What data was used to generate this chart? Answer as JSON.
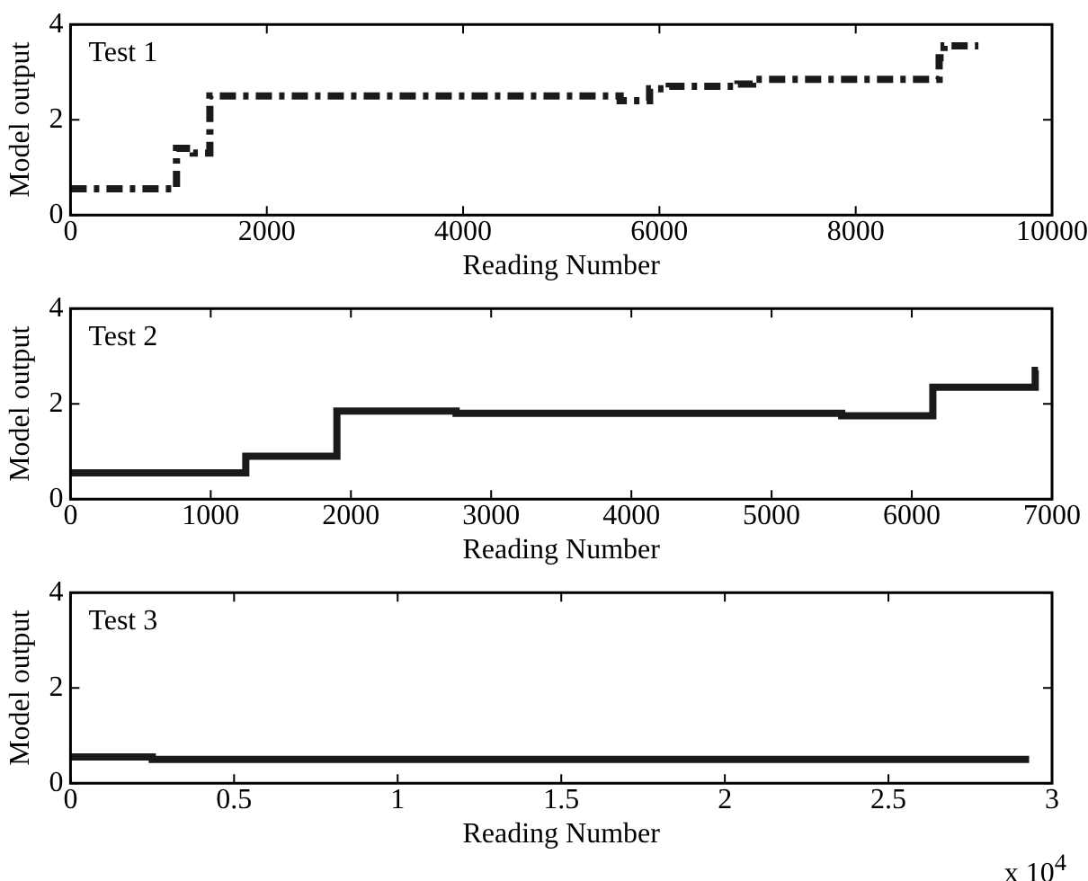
{
  "chart_data": [
    {
      "type": "step",
      "title": "Test 1",
      "xlabel": "Reading Number",
      "ylabel": "Model output",
      "xlim": [
        0,
        10000
      ],
      "xticks": [
        0,
        2000,
        4000,
        6000,
        8000,
        10000
      ],
      "ylim": [
        0,
        4
      ],
      "yticks": [
        0,
        2,
        4
      ],
      "line_style": "dashed",
      "series": [
        {
          "color": "#1a1a1a",
          "x": [
            0,
            1080,
            1250,
            1420,
            5600,
            5900,
            6100,
            6800,
            6950,
            8850,
            8900,
            9250
          ],
          "values": [
            0.55,
            1.4,
            1.3,
            2.5,
            2.4,
            2.65,
            2.7,
            2.75,
            2.85,
            3.3,
            3.55,
            3.55
          ]
        }
      ]
    },
    {
      "type": "step",
      "title": "Test 2",
      "xlabel": "Reading Number",
      "ylabel": "Model output",
      "xlim": [
        0,
        7000
      ],
      "xticks": [
        0,
        1000,
        2000,
        3000,
        4000,
        5000,
        6000,
        7000
      ],
      "ylim": [
        0,
        4
      ],
      "yticks": [
        0,
        2,
        4
      ],
      "line_style": "solid",
      "series": [
        {
          "color": "#1a1a1a",
          "x": [
            0,
            1250,
            1900,
            2750,
            5500,
            6150,
            6880,
            6900
          ],
          "values": [
            0.55,
            0.9,
            1.85,
            1.8,
            1.75,
            2.35,
            2.7,
            2.7
          ]
        }
      ]
    },
    {
      "type": "step",
      "title": "Test 3",
      "xlabel": "Reading Number",
      "ylabel": "Model output",
      "xlim": [
        0,
        3
      ],
      "xticks": [
        0,
        0.5,
        1,
        1.5,
        2,
        2.5,
        3
      ],
      "ylim": [
        0,
        4
      ],
      "yticks": [
        0,
        2,
        4
      ],
      "line_style": "solid",
      "annotations": [
        "x 10$^{4}$"
      ],
      "series": [
        {
          "color": "#1a1a1a",
          "x": [
            0,
            0.25,
            2.93
          ],
          "values": [
            0.55,
            0.5,
            0.5
          ]
        }
      ]
    }
  ]
}
